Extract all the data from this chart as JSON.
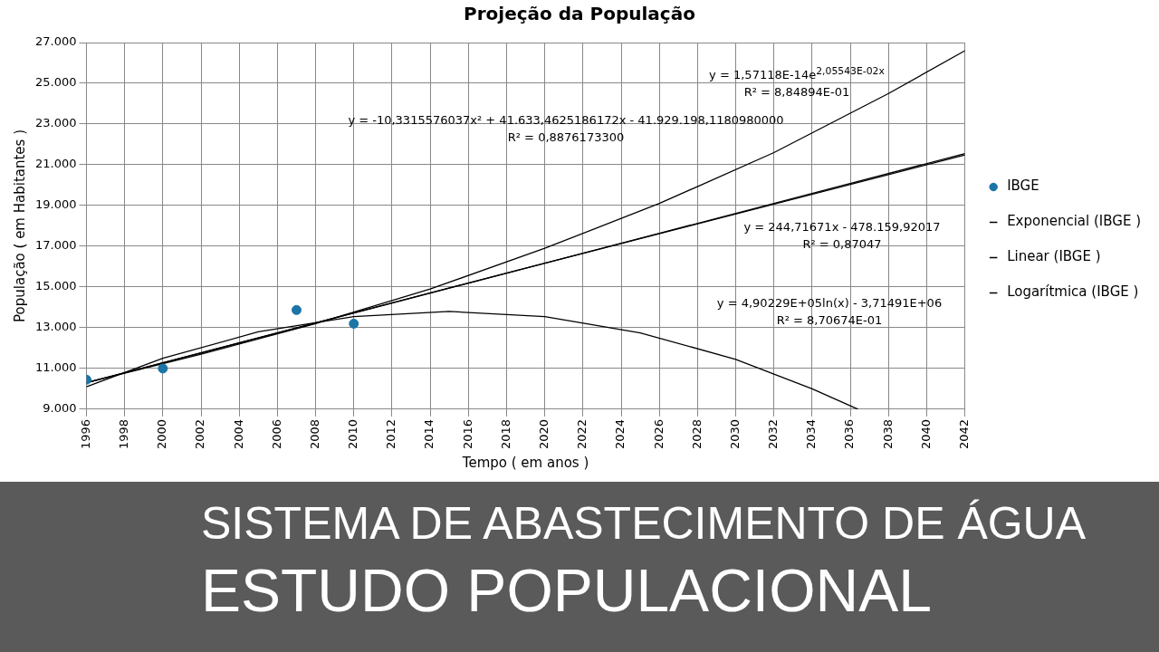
{
  "chart_data": {
    "type": "scatter",
    "title": "Projeção da População",
    "xlabel": "Tempo ( em anos )",
    "ylabel": "População ( em Habitantes )",
    "xlim": [
      1996,
      2042
    ],
    "xticks": [
      1996,
      1998,
      2000,
      2002,
      2004,
      2006,
      2008,
      2010,
      2012,
      2014,
      2016,
      2018,
      2020,
      2022,
      2024,
      2026,
      2028,
      2030,
      2032,
      2034,
      2036,
      2038,
      2040,
      2042
    ],
    "ylim": [
      9000,
      27000
    ],
    "yticks": [
      {
        "value": 9000,
        "label": "9.000"
      },
      {
        "value": 11000,
        "label": "11.000"
      },
      {
        "value": 13000,
        "label": "13.000"
      },
      {
        "value": 15000,
        "label": "15.000"
      },
      {
        "value": 17000,
        "label": "17.000"
      },
      {
        "value": 19000,
        "label": "19.000"
      },
      {
        "value": 21000,
        "label": "21.000"
      },
      {
        "value": 23000,
        "label": "23.000"
      },
      {
        "value": 25000,
        "label": "25.000"
      },
      {
        "value": 27000,
        "label": "27.000"
      }
    ],
    "grid": true,
    "legend": "right",
    "series": [
      {
        "name": "IBGE",
        "type": "scatter",
        "marker": "circle",
        "color": "#1b75a6",
        "x": [
          1996,
          2000,
          2007,
          2010
        ],
        "values": [
          10450,
          11000,
          13870,
          13200
        ]
      },
      {
        "name": "Exponencial (IBGE )",
        "type": "line",
        "marker": "none",
        "line_style": "solid",
        "color": "#000000",
        "x": [
          1996,
          2002,
          2008,
          2014,
          2020,
          2026,
          2032,
          2038,
          2042
        ],
        "values": [
          10300,
          11700,
          13200,
          14900,
          16900,
          19100,
          21600,
          24500,
          26600
        ]
      },
      {
        "name": "Linear (IBGE )",
        "type": "line",
        "marker": "none",
        "line_style": "solid",
        "color": "#000000",
        "x": [
          1996,
          2042
        ],
        "values": [
          10300,
          21550
        ]
      },
      {
        "name": "Logarítmica (IBGE )",
        "type": "line",
        "marker": "none",
        "line_style": "solid",
        "color": "#000000",
        "x": [
          1996,
          2019,
          2042
        ],
        "values": [
          10300,
          15930,
          21480
        ]
      },
      {
        "type": "line",
        "marker": "none",
        "line_style": "solid",
        "color": "#000000",
        "x": [
          1996,
          2000,
          2005,
          2010,
          2015,
          2020,
          2025,
          2030,
          2034,
          2036.4
        ],
        "values": [
          10100,
          11500,
          12800,
          13550,
          13800,
          13550,
          12750,
          11450,
          10000,
          9000
        ]
      }
    ],
    "annotations": [
      "y = -10,3315576037x² + 41.633,4625186172x - 41.929.198,1180980000\nR² = 0,8876173300",
      "y = 1,57118E-14e$^{2,05543E-02x}$\nR² = 8,84894E-01",
      "y = 244,71671x - 478.159,92017\nR² = 0,87047",
      "y = 4,90229E+05ln(x) - 3,71491E+06\nR² = 8,70674E-01",
      "SISTEMA DE ABASTECIMENTO DE ÁGUA",
      "ESTUDO POPULACIONAL"
    ]
  }
}
